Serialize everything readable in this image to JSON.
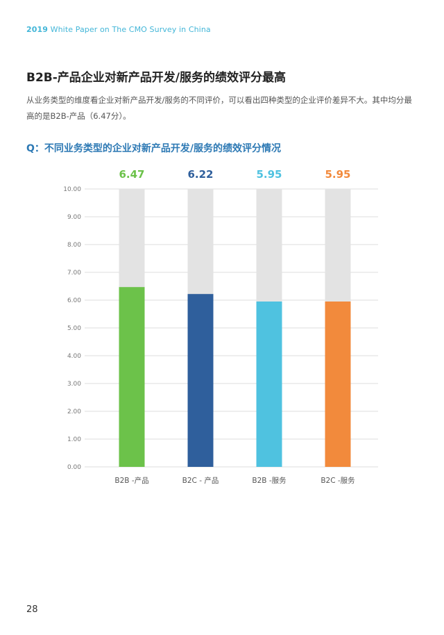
{
  "header": {
    "year": "2019",
    "title": "White Paper on The CMO Survey in China"
  },
  "section_title": "B2B-产品企业对新产品开发/服务的绩效评分最高",
  "intro_text": "从业务类型的维度看企业对新产品开发/服务的不同评价，可以看出四种类型的企业评价差异不大。其中均分最高的是B2B-产品（6.47分）。",
  "chart_title": "Q：不同业务类型的企业对新产品开发/服务的绩效评分情况",
  "page_number": "28",
  "chart_data": {
    "type": "bar",
    "categories": [
      "B2B -产品",
      "B2C - 产品",
      "B2B -服务",
      "B2C -服务"
    ],
    "values": [
      6.47,
      6.22,
      5.95,
      5.95
    ],
    "value_labels": [
      "6.47",
      "6.22",
      "5.95",
      "5.95"
    ],
    "colors": [
      "#6cc24a",
      "#2f5f9c",
      "#4fc2e0",
      "#f28a3c"
    ],
    "background_bar_color": "#e3e3e3",
    "ylim": [
      0,
      10
    ],
    "y_ticks": [
      "0.00",
      "1.00",
      "2.00",
      "3.00",
      "4.00",
      "5.00",
      "6.00",
      "7.00",
      "8.00",
      "9.00",
      "10.00"
    ],
    "grid": true,
    "title": "",
    "xlabel": "",
    "ylabel": ""
  }
}
